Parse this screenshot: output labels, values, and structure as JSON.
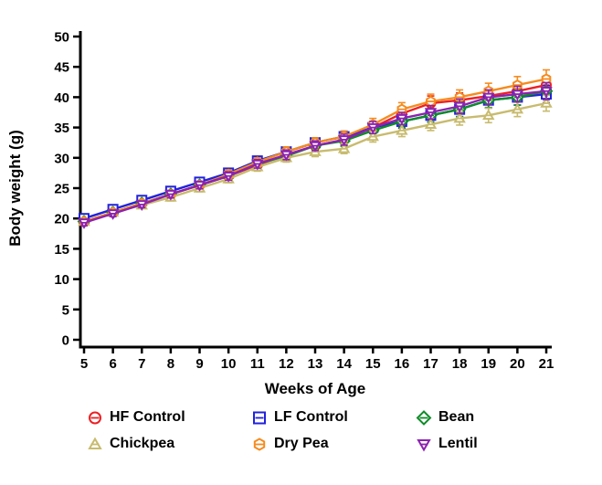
{
  "chart_data": {
    "type": "line",
    "title": "",
    "xlabel": "Weeks of Age",
    "ylabel": "Body weight (g)",
    "x": [
      5,
      6,
      7,
      8,
      9,
      10,
      11,
      12,
      13,
      14,
      15,
      16,
      17,
      18,
      19,
      20,
      21
    ],
    "xlim": [
      5,
      21
    ],
    "ylim": [
      0,
      50
    ],
    "ytick_step": 5,
    "grid": false,
    "error_bars": true,
    "legend_position": "bottom",
    "legend_layout": "2 rows x 3 columns",
    "series": [
      {
        "name": "HF Control",
        "color": "#ed2024",
        "marker": "circle",
        "values": [
          19.5,
          21.0,
          22.5,
          24.0,
          25.5,
          27.0,
          28.8,
          30.5,
          32.0,
          33.0,
          35.0,
          37.3,
          39.0,
          39.5,
          40.2,
          41.0,
          42.0
        ],
        "err": [
          0.5,
          0.5,
          0.5,
          0.6,
          0.6,
          0.7,
          0.7,
          0.8,
          0.8,
          0.9,
          1.0,
          1.1,
          1.2,
          1.2,
          1.3,
          1.4,
          1.5
        ]
      },
      {
        "name": "LF Control",
        "color": "#2222dd",
        "marker": "square",
        "values": [
          20.0,
          21.5,
          23.0,
          24.5,
          26.0,
          27.5,
          29.5,
          31.0,
          32.5,
          33.5,
          35.0,
          36.0,
          37.0,
          38.0,
          39.5,
          40.0,
          40.5
        ],
        "err": [
          0.5,
          0.5,
          0.5,
          0.6,
          0.6,
          0.7,
          0.7,
          0.8,
          0.8,
          0.9,
          1.0,
          1.1,
          1.1,
          1.2,
          1.3,
          1.3,
          1.4
        ]
      },
      {
        "name": "Bean",
        "color": "#0e8c28",
        "marker": "diamond",
        "values": [
          19.5,
          21.0,
          22.5,
          24.0,
          25.5,
          27.0,
          29.0,
          30.3,
          32.0,
          32.8,
          34.5,
          36.0,
          37.0,
          38.0,
          39.5,
          40.0,
          41.0
        ],
        "err": [
          0.5,
          0.5,
          0.5,
          0.6,
          0.6,
          0.7,
          0.7,
          0.8,
          0.8,
          0.9,
          1.0,
          1.0,
          1.1,
          1.2,
          1.2,
          1.3,
          1.4
        ]
      },
      {
        "name": "Chickpea",
        "color": "#c8bb6e",
        "marker": "triangle-up",
        "values": [
          19.5,
          21.0,
          22.2,
          23.5,
          25.0,
          26.5,
          28.5,
          30.0,
          31.0,
          31.5,
          33.5,
          34.5,
          35.5,
          36.5,
          37.0,
          38.0,
          39.0
        ],
        "err": [
          0.5,
          0.5,
          0.5,
          0.6,
          0.6,
          0.6,
          0.7,
          0.7,
          0.8,
          0.8,
          0.9,
          1.0,
          1.0,
          1.1,
          1.2,
          1.2,
          1.3
        ]
      },
      {
        "name": "Dry Pea",
        "color": "#f68b1e",
        "marker": "hexagon",
        "values": [
          19.5,
          21.0,
          22.5,
          24.0,
          25.5,
          27.3,
          29.3,
          31.0,
          32.5,
          33.5,
          35.5,
          38.0,
          39.3,
          40.0,
          41.0,
          42.0,
          43.0
        ],
        "err": [
          0.5,
          0.5,
          0.5,
          0.6,
          0.6,
          0.7,
          0.7,
          0.8,
          0.8,
          0.9,
          1.0,
          1.1,
          1.2,
          1.2,
          1.3,
          1.4,
          1.5
        ]
      },
      {
        "name": "Lentil",
        "color": "#8c22b0",
        "marker": "triangle-down",
        "values": [
          19.3,
          20.8,
          22.3,
          24.0,
          25.5,
          27.0,
          29.0,
          30.5,
          32.0,
          33.0,
          35.0,
          36.5,
          37.5,
          38.5,
          40.0,
          40.5,
          41.0
        ],
        "err": [
          0.5,
          0.5,
          0.5,
          0.6,
          0.6,
          0.7,
          0.7,
          0.8,
          0.8,
          0.9,
          1.0,
          1.0,
          1.1,
          1.2,
          1.2,
          1.3,
          1.4
        ]
      }
    ]
  }
}
